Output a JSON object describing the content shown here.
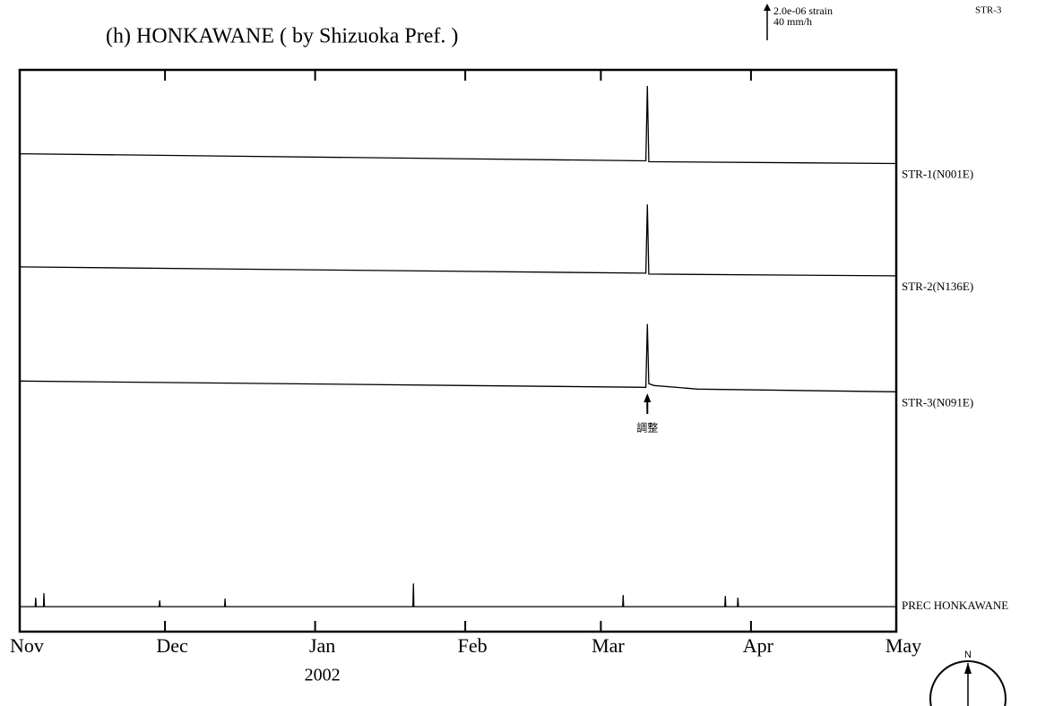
{
  "chart_data": {
    "type": "line",
    "title": "(h) HONKAWANE ( by Shizuoka Pref. )",
    "scale_strain": "2.0e-06 strain",
    "scale_rain": "40 mm/h",
    "scale_channel": "STR-3",
    "year_label": "2002",
    "annotation": "調整",
    "annotation_x": 129.6,
    "xlim": [
      0,
      181
    ],
    "xticks": [
      {
        "value": 0,
        "label": "Nov"
      },
      {
        "value": 30,
        "label": "Dec"
      },
      {
        "value": 61,
        "label": "Jan"
      },
      {
        "value": 92,
        "label": "Feb"
      },
      {
        "value": 120,
        "label": "Mar"
      },
      {
        "value": 151,
        "label": "Apr"
      },
      {
        "value": 181,
        "label": "May"
      }
    ],
    "ylim": [
      0,
      63
    ],
    "color": "#000000",
    "series": [
      {
        "name": "STR-1(N001E)",
        "x": [
          0,
          129.3,
          129.6,
          129.9,
          181
        ],
        "values": [
          53.6,
          52.8,
          61.2,
          52.7,
          52.5
        ]
      },
      {
        "name": "STR-2(N136E)",
        "x": [
          0,
          129.3,
          129.6,
          129.9,
          181
        ],
        "values": [
          40.9,
          40.2,
          47.9,
          40.1,
          39.9
        ]
      },
      {
        "name": "STR-3(N091E)",
        "x": [
          0,
          129.3,
          129.6,
          129.9,
          131,
          140,
          181
        ],
        "values": [
          28.1,
          27.4,
          34.5,
          27.8,
          27.6,
          27.2,
          26.9
        ]
      },
      {
        "name": "PREC HONKAWANE",
        "x": [
          0,
          3.2,
          3.3,
          3.4,
          4.9,
          5.0,
          5.1,
          28.8,
          28.9,
          29.0,
          42.3,
          42.4,
          42.5,
          81.2,
          81.3,
          81.4,
          124.5,
          124.6,
          124.7,
          145.6,
          145.7,
          145.8,
          148.2,
          148.3,
          148.4,
          181
        ],
        "values": [
          2.8,
          2.8,
          3.8,
          2.8,
          2.8,
          4.3,
          2.8,
          2.8,
          3.5,
          2.8,
          2.8,
          3.7,
          2.8,
          2.8,
          5.4,
          2.8,
          2.8,
          4.1,
          2.8,
          2.8,
          4.0,
          2.8,
          2.8,
          3.8,
          2.8,
          2.8
        ]
      }
    ]
  }
}
